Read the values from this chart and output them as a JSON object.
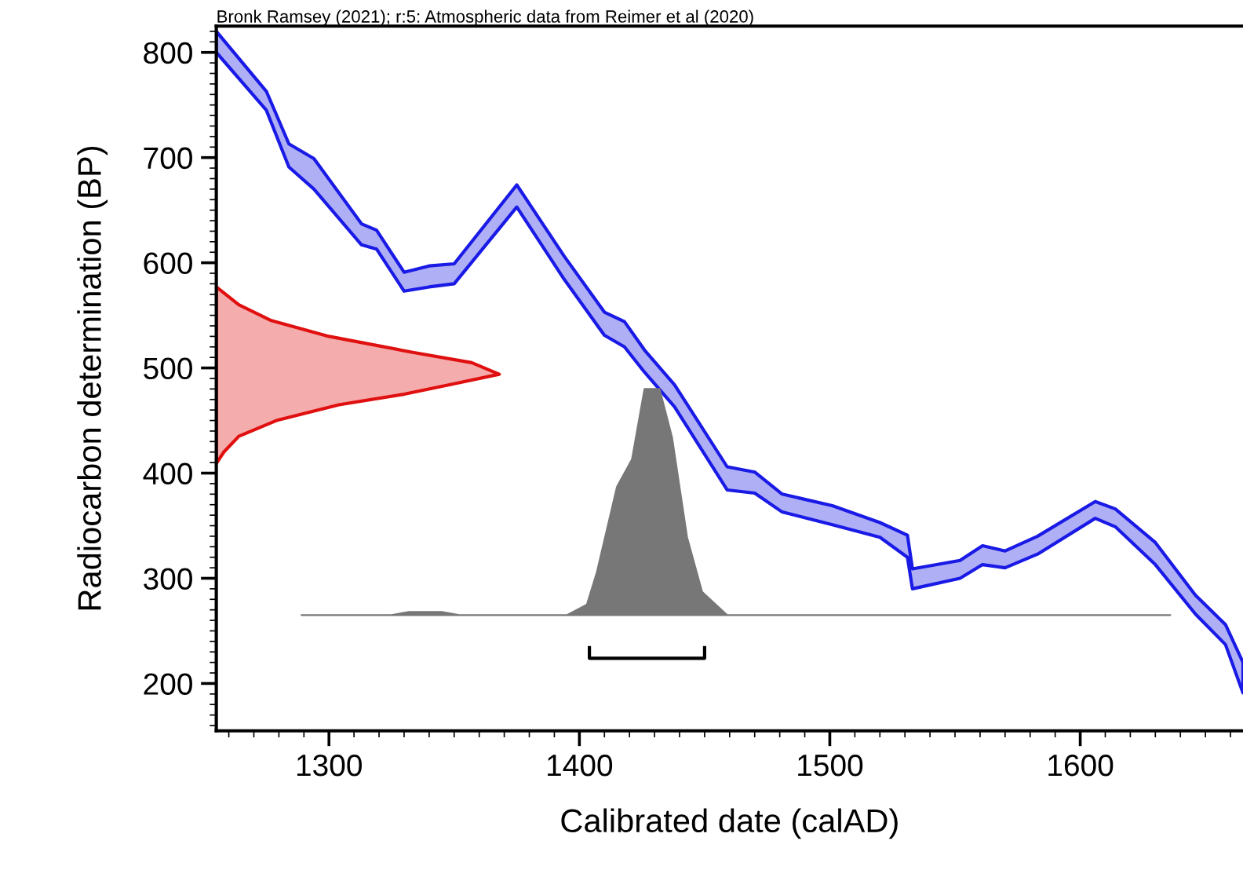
{
  "chart_data": {
    "type": "area",
    "title": "Bronk Ramsey (2021); r:5: Atmospheric data from Reimer et al (2020)",
    "xlabel": "Calibrated date (calAD)",
    "ylabel": "Radiocarbon determination (BP)",
    "xlim": [
      1255,
      1665
    ],
    "ylim": [
      155,
      825
    ],
    "xticks": [
      1300,
      1400,
      1500,
      1600
    ],
    "yticks": [
      200,
      300,
      400,
      500,
      600,
      700,
      800
    ],
    "grid": false,
    "legend": false,
    "series": [
      {
        "color": "#1a1ae6",
        "x": [
          1255,
          1275,
          1284,
          1294,
          1313,
          1319,
          1330,
          1340,
          1350,
          1375,
          1394,
          1410,
          1418,
          1426,
          1438,
          1459,
          1470,
          1481,
          1501,
          1520,
          1531,
          1533,
          1552,
          1561,
          1570,
          1583,
          1606,
          1614,
          1630,
          1646,
          1658,
          1665,
          1665,
          1658,
          1646,
          1630,
          1614,
          1606,
          1583,
          1570,
          1561,
          1552,
          1533,
          1531,
          1520,
          1501,
          1481,
          1470,
          1459,
          1438,
          1426,
          1418,
          1410,
          1394,
          1375,
          1350,
          1340,
          1330,
          1319,
          1313,
          1294,
          1284,
          1275,
          1255
        ],
        "values": [
          820,
          763,
          713,
          699,
          637,
          631,
          591,
          597,
          599,
          674,
          606,
          553,
          544,
          517,
          484,
          406,
          401,
          380,
          369,
          353,
          341,
          309,
          317,
          331,
          326,
          340,
          373,
          366,
          334,
          284,
          256,
          220,
          191,
          237,
          266,
          313,
          349,
          357,
          323,
          310,
          313,
          300,
          290,
          320,
          339,
          351,
          363,
          381,
          384,
          463,
          496,
          520,
          531,
          584,
          653,
          580,
          577,
          573,
          613,
          617,
          670,
          691,
          745,
          800
        ]
      },
      {
        "color": "#e01010",
        "x": [
          1255,
          1264,
          1277,
          1300,
          1333,
          1357,
          1368,
          1350,
          1330,
          1304,
          1279,
          1264,
          1258,
          1255
        ],
        "values": [
          577,
          560,
          545,
          530,
          515,
          505,
          494,
          485,
          475,
          465,
          450,
          435,
          420,
          409
        ]
      },
      {
        "color": "#777777",
        "x": [
          1289,
          1325,
          1332,
          1345,
          1352,
          1395,
          1403,
          1407,
          1415,
          1421,
          1426,
          1432,
          1437,
          1443,
          1449,
          1459,
          1636
        ],
        "values": [
          265,
          265,
          268,
          268,
          265,
          265,
          275,
          306,
          387,
          413,
          480,
          480,
          434,
          339,
          287,
          265,
          265
        ]
      },
      {
        "type": "line",
        "color": "#000000",
        "x": [
          1404,
          1404,
          1450,
          1450
        ],
        "values": [
          234,
          224,
          224,
          234
        ]
      }
    ]
  }
}
